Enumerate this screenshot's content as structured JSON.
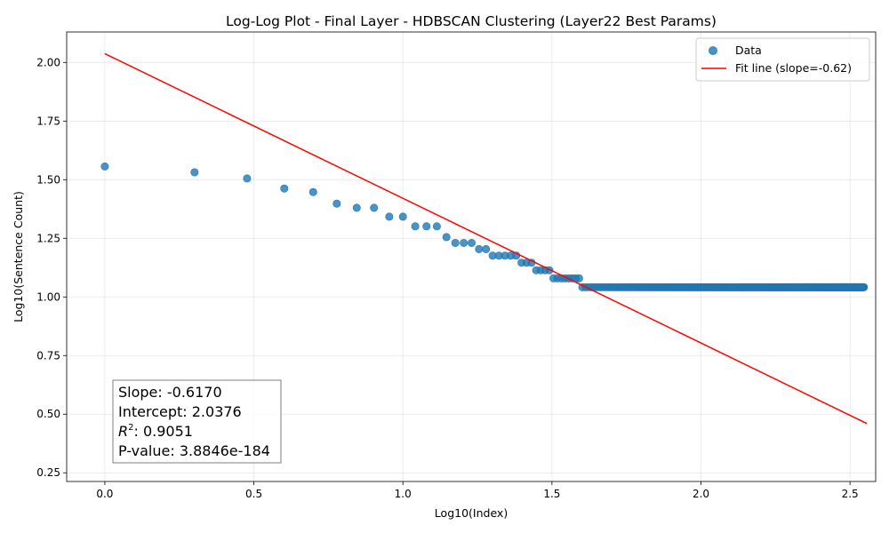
{
  "chart_data": {
    "type": "scatter",
    "title": "Log-Log Plot - Final Layer - HDBSCAN Clustering (Layer22 Best Params)",
    "xlabel": "Log10(Index)",
    "ylabel": "Log10(Sentence Count)",
    "xlim": [
      -0.128,
      2.586
    ],
    "ylim": [
      0.213,
      2.13
    ],
    "xticks": [
      0.0,
      0.5,
      1.0,
      1.5,
      2.0,
      2.5
    ],
    "xtick_labels": [
      "0.0",
      "0.5",
      "1.0",
      "1.5",
      "2.0",
      "2.5"
    ],
    "yticks": [
      0.25,
      0.5,
      0.75,
      1.0,
      1.25,
      1.5,
      1.75,
      2.0
    ],
    "ytick_labels": [
      "0.25",
      "0.50",
      "0.75",
      "1.00",
      "1.25",
      "1.50",
      "1.75",
      "2.00"
    ],
    "grid": true,
    "legend_position": "top-right",
    "colors": {
      "data": "#1f77b4",
      "fit": "#ff0000"
    },
    "series": [
      {
        "name": "Data",
        "kind": "points",
        "count_groups": [
          36,
          34,
          32,
          29,
          28,
          25,
          24,
          24,
          22,
          22,
          20,
          20,
          20,
          18,
          17,
          17,
          17,
          16,
          16,
          15,
          15,
          15,
          15,
          15,
          14,
          14,
          14,
          13,
          13,
          13,
          13,
          12,
          12,
          12,
          12,
          12,
          12,
          12,
          12,
          11,
          11,
          11,
          11,
          11,
          11,
          11,
          11,
          11,
          11,
          11,
          11,
          11,
          11,
          11,
          11,
          11,
          11,
          11,
          11,
          11,
          11,
          11,
          11,
          11,
          11,
          11,
          11,
          11,
          11,
          11,
          11,
          11,
          11,
          11,
          11,
          11,
          11,
          11,
          11,
          11,
          11,
          11,
          11,
          11,
          11,
          11,
          11,
          11,
          11,
          11,
          11,
          11,
          11,
          11,
          11,
          11,
          11,
          11,
          11,
          11,
          11,
          11,
          11,
          11,
          11,
          11,
          11,
          11,
          11,
          11,
          11,
          11,
          11,
          11,
          11,
          11,
          11,
          11,
          11,
          11,
          11,
          11,
          11,
          11,
          11,
          11,
          11,
          11,
          11,
          11,
          11,
          11,
          11,
          11,
          11,
          11,
          11,
          11,
          11,
          11,
          11,
          11,
          11,
          11,
          11,
          11,
          11,
          11,
          11,
          11,
          11,
          11,
          11,
          11,
          11,
          11,
          11,
          11,
          11,
          11,
          11,
          11,
          11,
          11,
          11,
          11,
          11,
          11,
          11,
          11,
          11,
          11,
          11,
          11,
          11,
          11,
          11,
          11,
          11,
          11,
          11,
          11,
          11,
          11,
          11,
          11,
          11,
          11,
          11,
          11,
          11,
          11,
          11,
          11,
          11,
          11,
          11,
          11,
          11,
          11,
          11,
          11,
          11,
          11,
          11,
          11,
          11,
          11,
          11,
          11,
          11,
          11,
          11,
          11,
          11,
          11,
          11,
          11,
          11,
          11,
          11,
          11,
          11,
          11,
          11,
          11,
          11,
          11,
          11,
          11,
          11,
          11,
          11,
          11,
          11,
          11,
          11,
          11,
          11,
          11,
          11,
          11,
          11,
          11,
          11,
          11,
          11,
          11,
          11,
          11,
          11,
          11,
          11,
          11,
          11,
          11,
          11,
          11,
          11,
          11,
          11,
          11,
          11,
          11,
          11,
          11,
          11,
          11,
          11,
          11,
          11,
          11,
          11,
          11,
          11,
          11,
          11,
          11,
          11,
          11,
          11,
          11,
          11,
          11,
          11,
          11,
          11,
          11,
          11,
          11,
          11,
          11,
          11,
          11,
          11,
          11,
          11,
          11,
          11,
          11,
          11,
          11,
          11,
          11,
          11,
          11,
          11,
          11,
          11,
          11,
          11,
          11,
          11,
          11,
          11,
          11,
          11,
          11,
          11,
          11,
          11,
          11,
          11,
          11,
          11,
          11,
          11,
          11,
          11,
          11,
          11,
          11,
          11,
          11,
          11,
          11,
          11,
          11,
          11,
          11,
          11,
          11,
          11,
          11,
          11,
          11,
          11,
          11,
          11,
          11,
          11,
          11
        ]
      },
      {
        "name": "Fit line (slope=-0.62)",
        "kind": "line",
        "slope": -0.617,
        "intercept": 2.0376,
        "x_range": [
          0.0,
          2.556
        ]
      }
    ],
    "stats": {
      "slope": "Slope: -0.6170",
      "intercept": "Intercept: 2.0376",
      "r2_prefix": "R",
      "r2_sup": "2",
      "r2_value": ": 0.9051",
      "pvalue": "P-value: 3.8846e-184"
    }
  }
}
